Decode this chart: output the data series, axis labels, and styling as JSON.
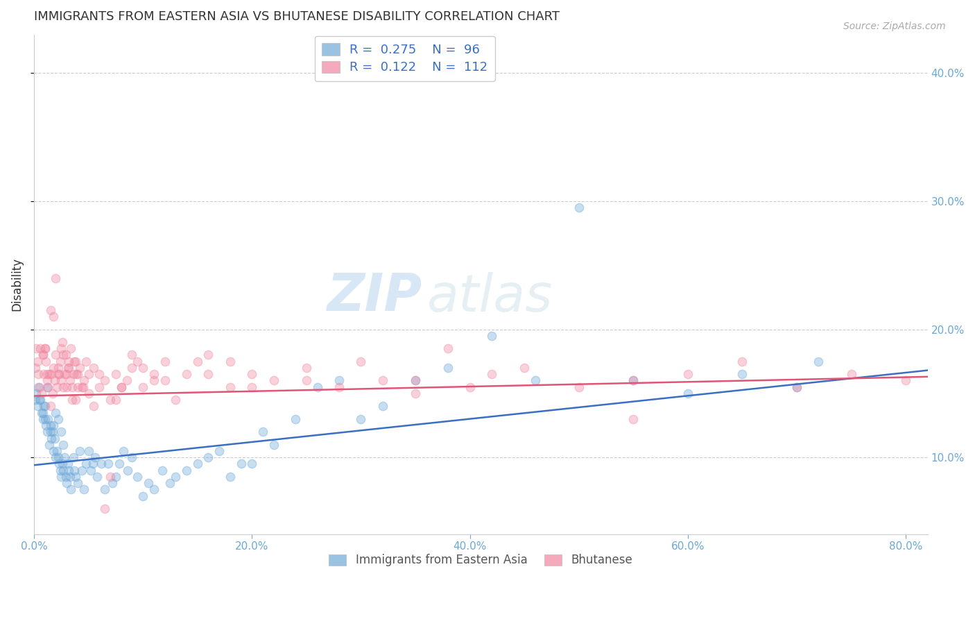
{
  "title": "IMMIGRANTS FROM EASTERN ASIA VS BHUTANESE DISABILITY CORRELATION CHART",
  "source": "Source: ZipAtlas.com",
  "xlabel_ticks": [
    "0.0%",
    "20.0%",
    "40.0%",
    "60.0%",
    "80.0%"
  ],
  "xlabel_tick_vals": [
    0.0,
    0.2,
    0.4,
    0.6,
    0.8
  ],
  "ylabel_ticks": [
    "10.0%",
    "20.0%",
    "30.0%",
    "40.0%"
  ],
  "ylabel_tick_vals": [
    0.1,
    0.2,
    0.3,
    0.4
  ],
  "xlim": [
    0.0,
    0.82
  ],
  "ylim": [
    0.04,
    0.43
  ],
  "blue_color": "#6ea8d8",
  "pink_color": "#f087a0",
  "line_blue": "#3a6fc4",
  "line_pink": "#e05575",
  "legend_R1": "0.275",
  "legend_N1": "96",
  "legend_R2": "0.122",
  "legend_N2": "112",
  "legend_label1": "Immigrants from Eastern Asia",
  "legend_label2": "Bhutanese",
  "watermark_zip": "ZIP",
  "watermark_atlas": "atlas",
  "blue_scatter_x": [
    0.005,
    0.007,
    0.008,
    0.009,
    0.01,
    0.011,
    0.012,
    0.013,
    0.014,
    0.015,
    0.016,
    0.017,
    0.018,
    0.019,
    0.02,
    0.021,
    0.022,
    0.023,
    0.024,
    0.025,
    0.026,
    0.027,
    0.028,
    0.029,
    0.03,
    0.031,
    0.032,
    0.033,
    0.034,
    0.036,
    0.037,
    0.038,
    0.04,
    0.042,
    0.044,
    0.046,
    0.048,
    0.05,
    0.052,
    0.054,
    0.056,
    0.058,
    0.062,
    0.065,
    0.068,
    0.072,
    0.075,
    0.078,
    0.082,
    0.086,
    0.09,
    0.095,
    0.1,
    0.105,
    0.11,
    0.118,
    0.125,
    0.13,
    0.14,
    0.15,
    0.16,
    0.17,
    0.18,
    0.19,
    0.2,
    0.21,
    0.22,
    0.24,
    0.26,
    0.28,
    0.3,
    0.32,
    0.35,
    0.38,
    0.42,
    0.46,
    0.5,
    0.55,
    0.6,
    0.65,
    0.7,
    0.72,
    0.001,
    0.002,
    0.003,
    0.004,
    0.006,
    0.008,
    0.01,
    0.012,
    0.015,
    0.018,
    0.02,
    0.022,
    0.025,
    0.027
  ],
  "blue_scatter_y": [
    0.145,
    0.135,
    0.13,
    0.14,
    0.13,
    0.125,
    0.12,
    0.13,
    0.11,
    0.125,
    0.115,
    0.12,
    0.105,
    0.115,
    0.1,
    0.105,
    0.1,
    0.095,
    0.09,
    0.085,
    0.095,
    0.09,
    0.1,
    0.085,
    0.08,
    0.095,
    0.09,
    0.085,
    0.075,
    0.1,
    0.09,
    0.085,
    0.08,
    0.105,
    0.09,
    0.075,
    0.095,
    0.105,
    0.09,
    0.095,
    0.1,
    0.085,
    0.095,
    0.075,
    0.095,
    0.08,
    0.085,
    0.095,
    0.105,
    0.09,
    0.1,
    0.085,
    0.07,
    0.08,
    0.075,
    0.09,
    0.08,
    0.085,
    0.09,
    0.095,
    0.1,
    0.105,
    0.085,
    0.095,
    0.095,
    0.12,
    0.11,
    0.13,
    0.155,
    0.16,
    0.13,
    0.14,
    0.16,
    0.17,
    0.195,
    0.16,
    0.295,
    0.16,
    0.15,
    0.165,
    0.155,
    0.175,
    0.145,
    0.15,
    0.14,
    0.155,
    0.145,
    0.135,
    0.14,
    0.155,
    0.12,
    0.125,
    0.135,
    0.13,
    0.12,
    0.11
  ],
  "pink_scatter_x": [
    0.005,
    0.007,
    0.008,
    0.009,
    0.01,
    0.011,
    0.012,
    0.013,
    0.014,
    0.015,
    0.016,
    0.017,
    0.018,
    0.019,
    0.02,
    0.021,
    0.022,
    0.023,
    0.024,
    0.025,
    0.026,
    0.027,
    0.028,
    0.029,
    0.03,
    0.031,
    0.032,
    0.033,
    0.034,
    0.035,
    0.036,
    0.037,
    0.038,
    0.039,
    0.04,
    0.042,
    0.044,
    0.046,
    0.048,
    0.05,
    0.055,
    0.06,
    0.065,
    0.07,
    0.075,
    0.08,
    0.085,
    0.09,
    0.095,
    0.1,
    0.11,
    0.12,
    0.13,
    0.15,
    0.16,
    0.18,
    0.2,
    0.22,
    0.25,
    0.28,
    0.32,
    0.35,
    0.38,
    0.42,
    0.55,
    0.001,
    0.002,
    0.003,
    0.004,
    0.006,
    0.008,
    0.01,
    0.012,
    0.015,
    0.018,
    0.02,
    0.022,
    0.025,
    0.027,
    0.03,
    0.032,
    0.035,
    0.038,
    0.04,
    0.045,
    0.05,
    0.055,
    0.06,
    0.065,
    0.07,
    0.075,
    0.08,
    0.09,
    0.1,
    0.11,
    0.12,
    0.14,
    0.16,
    0.18,
    0.2,
    0.25,
    0.3,
    0.35,
    0.4,
    0.45,
    0.5,
    0.55,
    0.6,
    0.65,
    0.7,
    0.75,
    0.8
  ],
  "pink_scatter_y": [
    0.155,
    0.15,
    0.18,
    0.165,
    0.185,
    0.175,
    0.16,
    0.155,
    0.165,
    0.14,
    0.165,
    0.15,
    0.17,
    0.16,
    0.18,
    0.155,
    0.17,
    0.165,
    0.175,
    0.16,
    0.19,
    0.18,
    0.165,
    0.18,
    0.155,
    0.17,
    0.175,
    0.16,
    0.185,
    0.155,
    0.165,
    0.175,
    0.145,
    0.165,
    0.155,
    0.17,
    0.155,
    0.16,
    0.175,
    0.165,
    0.17,
    0.155,
    0.16,
    0.145,
    0.165,
    0.155,
    0.16,
    0.17,
    0.175,
    0.155,
    0.165,
    0.16,
    0.145,
    0.175,
    0.165,
    0.175,
    0.155,
    0.16,
    0.17,
    0.155,
    0.16,
    0.15,
    0.185,
    0.165,
    0.13,
    0.17,
    0.185,
    0.175,
    0.165,
    0.185,
    0.18,
    0.185,
    0.165,
    0.215,
    0.21,
    0.24,
    0.165,
    0.185,
    0.155,
    0.165,
    0.17,
    0.145,
    0.175,
    0.165,
    0.155,
    0.15,
    0.14,
    0.165,
    0.06,
    0.085,
    0.145,
    0.155,
    0.18,
    0.17,
    0.16,
    0.175,
    0.165,
    0.18,
    0.155,
    0.165,
    0.16,
    0.175,
    0.16,
    0.155,
    0.17,
    0.155,
    0.16,
    0.165,
    0.175,
    0.155,
    0.165,
    0.16
  ],
  "blue_trend_x": [
    0.0,
    0.82
  ],
  "blue_trend_y": [
    0.094,
    0.168
  ],
  "pink_trend_x": [
    0.0,
    0.82
  ],
  "pink_trend_y": [
    0.148,
    0.163
  ],
  "ylabel": "Disability",
  "background_color": "#ffffff",
  "grid_color": "#cccccc",
  "axis_color": "#cccccc",
  "title_color": "#333333",
  "tick_color": "#6aa8d8",
  "scatter_size": 80,
  "scatter_alpha": 0.38,
  "scatter_lw": 1.0
}
